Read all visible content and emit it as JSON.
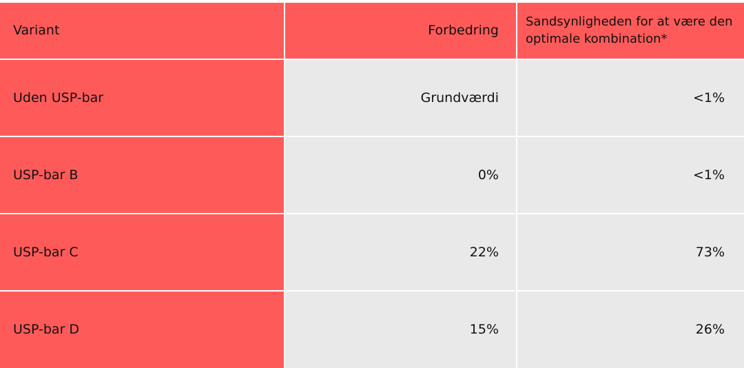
{
  "table": {
    "headers": [
      "Variant",
      "Forbedring",
      "Sandsynligheden for at være den optimale kombination*"
    ],
    "rows": [
      {
        "variant": "Uden USP-bar",
        "forbedring": "Grundværdi",
        "sandsynlighed": "<1%"
      },
      {
        "variant": "USP-bar B",
        "forbedring": "0%",
        "sandsynlighed": "<1%"
      },
      {
        "variant": "USP-bar C",
        "forbedring": "22%",
        "sandsynlighed": "73%"
      },
      {
        "variant": "USP-bar D",
        "forbedring": "15%",
        "sandsynlighed": "26%"
      }
    ]
  },
  "colors": {
    "header_and_first_column": "#ff5a5a",
    "body_cells": "#e9e9e9"
  }
}
